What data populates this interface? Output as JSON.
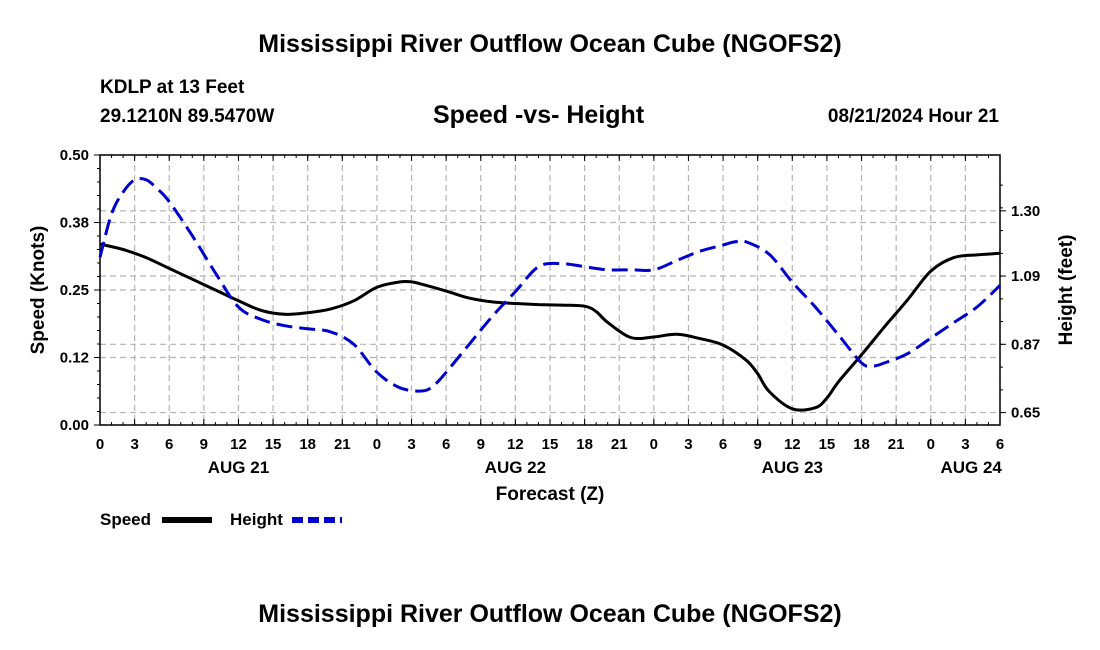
{
  "header": {
    "title": "Mississippi River Outflow Ocean Cube (NGOFS2)",
    "station": "KDLP at 13 Feet",
    "coords": "29.1210N  89.5470W",
    "date": "08/21/2024 Hour 21"
  },
  "footer": {
    "title": "Mississippi River Outflow Ocean Cube (NGOFS2)"
  },
  "colors": {
    "speed": "#000000",
    "height": "#0000cc",
    "grid": "#b4b4b4"
  },
  "chart_data": {
    "type": "line",
    "title": "Speed -vs- Height",
    "xlabel": "Forecast (Z)",
    "ylabel_left": "Speed (Knots)",
    "ylabel_right": "Height (feet)",
    "x_range": [
      0,
      78
    ],
    "y_left_range": [
      0,
      0.5
    ],
    "y_right_range": [
      0.61,
      1.48
    ],
    "left_ticks": [
      {
        "v": 0.0,
        "label": "0.00"
      },
      {
        "v": 0.125,
        "label": "0.12"
      },
      {
        "v": 0.25,
        "label": "0.25"
      },
      {
        "v": 0.375,
        "label": "0.38"
      },
      {
        "v": 0.5,
        "label": "0.50"
      }
    ],
    "right_ticks": [
      {
        "v": 0.65,
        "label": "0.65"
      },
      {
        "v": 0.87,
        "label": "0.87"
      },
      {
        "v": 1.09,
        "label": "1.09"
      },
      {
        "v": 1.3,
        "label": "1.30"
      }
    ],
    "x_ticks": [
      {
        "h": 0,
        "label": "0"
      },
      {
        "h": 3,
        "label": "3"
      },
      {
        "h": 6,
        "label": "6"
      },
      {
        "h": 9,
        "label": "9"
      },
      {
        "h": 12,
        "label": "12"
      },
      {
        "h": 15,
        "label": "15"
      },
      {
        "h": 18,
        "label": "18"
      },
      {
        "h": 21,
        "label": "21"
      },
      {
        "h": 24,
        "label": "0"
      },
      {
        "h": 27,
        "label": "3"
      },
      {
        "h": 30,
        "label": "6"
      },
      {
        "h": 33,
        "label": "9"
      },
      {
        "h": 36,
        "label": "12"
      },
      {
        "h": 39,
        "label": "15"
      },
      {
        "h": 42,
        "label": "18"
      },
      {
        "h": 45,
        "label": "21"
      },
      {
        "h": 48,
        "label": "0"
      },
      {
        "h": 51,
        "label": "3"
      },
      {
        "h": 54,
        "label": "6"
      },
      {
        "h": 57,
        "label": "9"
      },
      {
        "h": 60,
        "label": "12"
      },
      {
        "h": 63,
        "label": "15"
      },
      {
        "h": 66,
        "label": "18"
      },
      {
        "h": 69,
        "label": "21"
      },
      {
        "h": 72,
        "label": "0"
      },
      {
        "h": 75,
        "label": "3"
      },
      {
        "h": 78,
        "label": "6"
      }
    ],
    "date_labels": [
      {
        "h": 12,
        "label": "AUG 21"
      },
      {
        "h": 36,
        "label": "AUG 22"
      },
      {
        "h": 60,
        "label": "AUG 23"
      },
      {
        "h": 75.5,
        "label": "AUG 24"
      }
    ],
    "series": [
      {
        "name": "Speed",
        "axis": "left",
        "style": "solid",
        "x": [
          0,
          2,
          4,
          6,
          8,
          10,
          12,
          14,
          16,
          18,
          20,
          22,
          24,
          26,
          27,
          28,
          30,
          32,
          34,
          36,
          38,
          40,
          42,
          43,
          44,
          46,
          48,
          50,
          52,
          54,
          56,
          57,
          58,
          60,
          62,
          63,
          64,
          66,
          68,
          70,
          72,
          74,
          76,
          78
        ],
        "values": [
          0.335,
          0.325,
          0.31,
          0.29,
          0.27,
          0.25,
          0.23,
          0.212,
          0.205,
          0.208,
          0.215,
          0.23,
          0.255,
          0.265,
          0.265,
          0.26,
          0.248,
          0.235,
          0.228,
          0.225,
          0.223,
          0.222,
          0.22,
          0.21,
          0.19,
          0.162,
          0.163,
          0.168,
          0.16,
          0.148,
          0.12,
          0.095,
          0.062,
          0.03,
          0.032,
          0.05,
          0.08,
          0.13,
          0.182,
          0.232,
          0.285,
          0.31,
          0.315,
          0.318
        ]
      },
      {
        "name": "Height",
        "axis": "right",
        "style": "dashed",
        "x": [
          0,
          1,
          2,
          3,
          4,
          5,
          6,
          8,
          10,
          12,
          14,
          16,
          18,
          20,
          22,
          24,
          26,
          28,
          29,
          30,
          32,
          34,
          36,
          38,
          40,
          42,
          44,
          46,
          48,
          50,
          52,
          54,
          55,
          56,
          58,
          60,
          62,
          64,
          66,
          67,
          68,
          70,
          72,
          74,
          76,
          78
        ],
        "values": [
          1.15,
          1.29,
          1.36,
          1.4,
          1.4,
          1.37,
          1.33,
          1.22,
          1.1,
          0.99,
          0.95,
          0.93,
          0.92,
          0.91,
          0.87,
          0.78,
          0.73,
          0.72,
          0.74,
          0.78,
          0.87,
          0.96,
          1.04,
          1.12,
          1.13,
          1.12,
          1.11,
          1.11,
          1.11,
          1.14,
          1.17,
          1.19,
          1.2,
          1.2,
          1.16,
          1.07,
          0.99,
          0.9,
          0.81,
          0.8,
          0.81,
          0.84,
          0.89,
          0.94,
          0.99,
          1.06
        ]
      }
    ],
    "legend": [
      {
        "name": "Speed",
        "style": "solid"
      },
      {
        "name": "Height",
        "style": "dashed"
      }
    ]
  }
}
